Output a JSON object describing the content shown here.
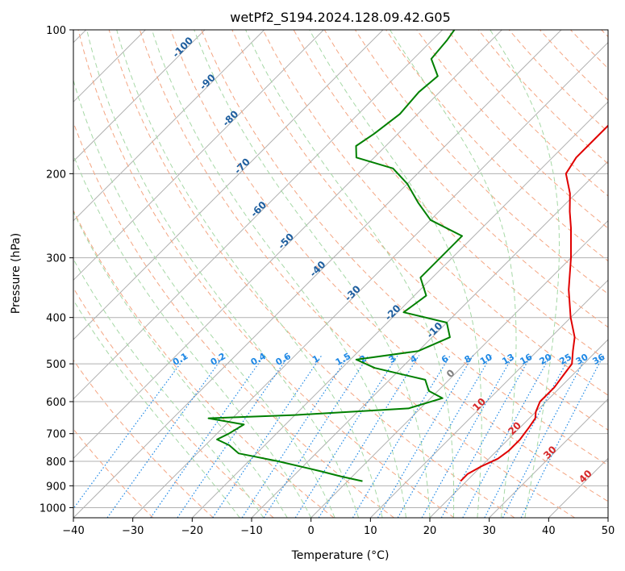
{
  "chart_data": {
    "type": "line",
    "subtype": "skew-t log-p diagram",
    "title": "wetPf2_S194.2024.128.09.42.G05",
    "xlabel": "Temperature (°C)",
    "ylabel": "Pressure (hPa)",
    "xlim": [
      -40,
      50
    ],
    "ylim": [
      1050,
      100
    ],
    "y_scale": "log",
    "x_ticks": [
      "−40",
      "−30",
      "−20",
      "−10",
      "0",
      "10",
      "20",
      "30",
      "40",
      "50"
    ],
    "y_ticks": [
      {
        "p": 100,
        "label": "100"
      },
      {
        "p": 200,
        "label": "200"
      },
      {
        "p": 300,
        "label": "300"
      },
      {
        "p": 400,
        "label": "400"
      },
      {
        "p": 500,
        "label": "500"
      },
      {
        "p": 600,
        "label": "600"
      },
      {
        "p": 700,
        "label": "700"
      },
      {
        "p": 800,
        "label": "800"
      },
      {
        "p": 900,
        "label": "900"
      },
      {
        "p": 1000,
        "label": "1000"
      }
    ],
    "grid": true,
    "isotherm_labels": [
      {
        "t": -100,
        "label": "-100"
      },
      {
        "t": -90,
        "label": "-90"
      },
      {
        "t": -80,
        "label": "-80"
      },
      {
        "t": -70,
        "label": "-70"
      },
      {
        "t": -60,
        "label": "-60"
      },
      {
        "t": -50,
        "label": "-50"
      },
      {
        "t": -40,
        "label": "-40"
      },
      {
        "t": -30,
        "label": "-30"
      },
      {
        "t": -20,
        "label": "-20"
      },
      {
        "t": -10,
        "label": "-10"
      }
    ],
    "isotherm_labels_near_surface": [
      {
        "t": 0,
        "label": "0"
      },
      {
        "t": 10,
        "label": "10"
      },
      {
        "t": 20,
        "label": "20"
      },
      {
        "t": 30,
        "label": "30"
      },
      {
        "t": 40,
        "label": "40"
      }
    ],
    "mixing_ratio_labels": [
      "0.1",
      "0.2",
      "0.4",
      "0.6",
      "1",
      "1.5",
      "2",
      "3",
      "4",
      "6",
      "8",
      "10",
      "13",
      "16",
      "20",
      "25",
      "30",
      "36"
    ],
    "series": [
      {
        "role": "temperature",
        "color": "#e00000",
        "points": [
          {
            "p": 880,
            "t": 19.0
          },
          {
            "p": 850,
            "t": 19.0
          },
          {
            "p": 820,
            "t": 20.0
          },
          {
            "p": 790,
            "t": 21.5
          },
          {
            "p": 760,
            "t": 22.0
          },
          {
            "p": 720,
            "t": 22.0
          },
          {
            "p": 680,
            "t": 21.5
          },
          {
            "p": 650,
            "t": 21.0
          },
          {
            "p": 630,
            "t": 20.0
          },
          {
            "p": 600,
            "t": 19.0
          },
          {
            "p": 560,
            "t": 19.0
          },
          {
            "p": 530,
            "t": 18.5
          },
          {
            "p": 500,
            "t": 18.0
          },
          {
            "p": 470,
            "t": 16.0
          },
          {
            "p": 440,
            "t": 14.0
          },
          {
            "p": 400,
            "t": 10.0
          },
          {
            "p": 350,
            "t": 5.0
          },
          {
            "p": 300,
            "t": 0.0
          },
          {
            "p": 260,
            "t": -5.0
          },
          {
            "p": 240,
            "t": -8.0
          },
          {
            "p": 220,
            "t": -11.0
          },
          {
            "p": 200,
            "t": -15.0
          },
          {
            "p": 185,
            "t": -16.0
          },
          {
            "p": 170,
            "t": -16.0
          },
          {
            "p": 150,
            "t": -16.0
          },
          {
            "p": 130,
            "t": -14.0
          },
          {
            "p": 115,
            "t": -12.5
          },
          {
            "p": 100,
            "t": -12.0
          }
        ]
      },
      {
        "role": "dewpoint",
        "color": "#008000",
        "points": [
          {
            "p": 880,
            "t": 2.5
          },
          {
            "p": 860,
            "t": -2.0
          },
          {
            "p": 840,
            "t": -6.0
          },
          {
            "p": 800,
            "t": -15.0
          },
          {
            "p": 770,
            "t": -23.0
          },
          {
            "p": 740,
            "t": -26.0
          },
          {
            "p": 720,
            "t": -29.0
          },
          {
            "p": 700,
            "t": -28.0
          },
          {
            "p": 670,
            "t": -27.0
          },
          {
            "p": 650,
            "t": -34.0
          },
          {
            "p": 640,
            "t": -20.0
          },
          {
            "p": 620,
            "t": -2.0
          },
          {
            "p": 590,
            "t": 2.0
          },
          {
            "p": 570,
            "t": -1.5
          },
          {
            "p": 540,
            "t": -4.0
          },
          {
            "p": 510,
            "t": -14.5
          },
          {
            "p": 490,
            "t": -19.0
          },
          {
            "p": 470,
            "t": -10.0
          },
          {
            "p": 440,
            "t": -7.0
          },
          {
            "p": 410,
            "t": -10.0
          },
          {
            "p": 390,
            "t": -19.0
          },
          {
            "p": 360,
            "t": -18.0
          },
          {
            "p": 330,
            "t": -22.0
          },
          {
            "p": 300,
            "t": -22.0
          },
          {
            "p": 270,
            "t": -22.0
          },
          {
            "p": 250,
            "t": -30.0
          },
          {
            "p": 230,
            "t": -35.0
          },
          {
            "p": 210,
            "t": -40.0
          },
          {
            "p": 195,
            "t": -45.0
          },
          {
            "p": 185,
            "t": -53.0
          },
          {
            "p": 175,
            "t": -55.0
          },
          {
            "p": 165,
            "t": -54.0
          },
          {
            "p": 150,
            "t": -53.0
          },
          {
            "p": 135,
            "t": -53.5
          },
          {
            "p": 125,
            "t": -53.0
          },
          {
            "p": 115,
            "t": -57.0
          },
          {
            "p": 105,
            "t": -57.5
          },
          {
            "p": 100,
            "t": -58.0
          }
        ]
      }
    ],
    "colors": {
      "temperature": "#e00000",
      "dewpoint": "#008000",
      "dry_adiabat": "#f4a582",
      "moist_adiabat": "#a6d8a6",
      "mixing_ratio": "#1e88e5",
      "isotherm_label": "#1f5f9f",
      "warm_isotherm_label": "#d62728",
      "grid": "#b0b0b0",
      "ccl_curve": "#e0c8a0"
    }
  }
}
